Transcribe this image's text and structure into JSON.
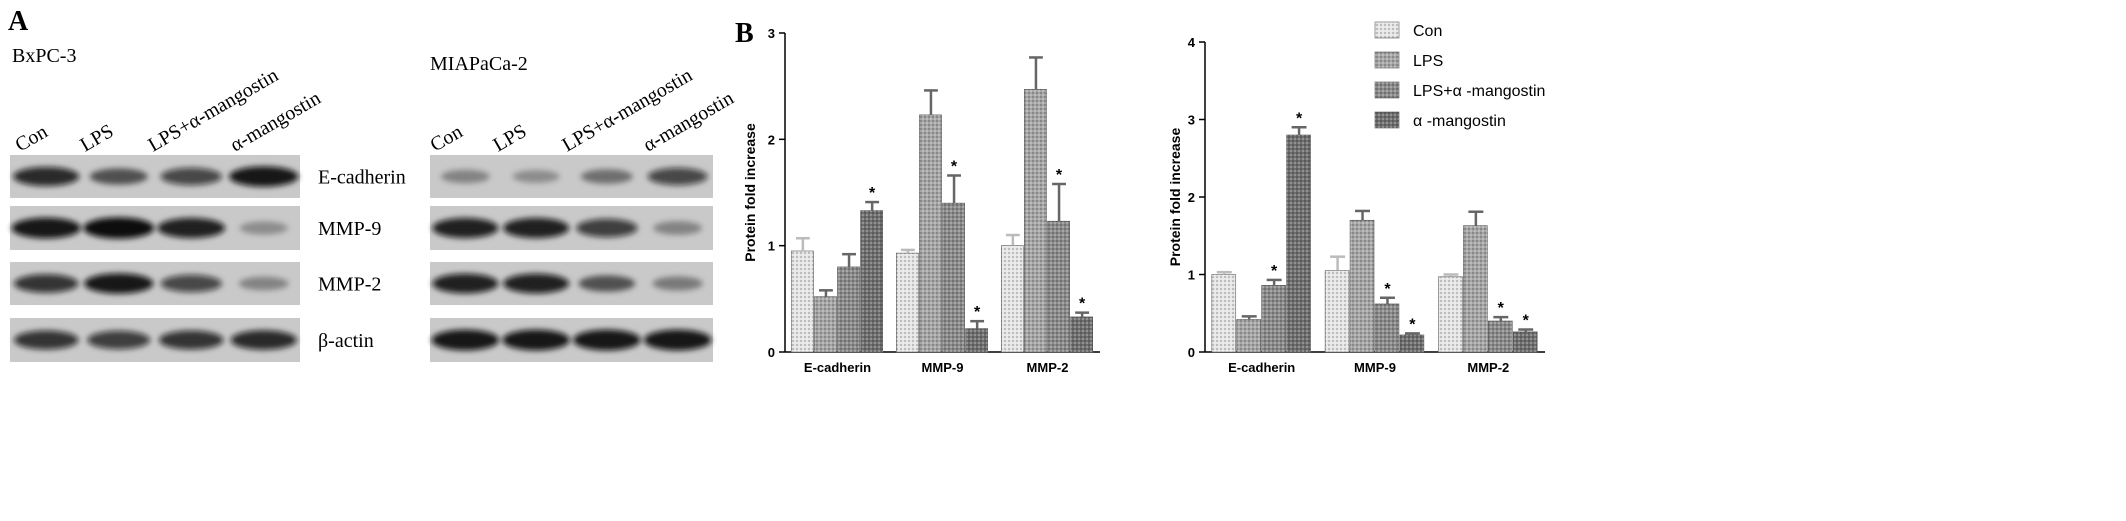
{
  "panel_a": {
    "label": "A",
    "proteins": [
      "E-cadherin",
      "MMP-9",
      "MMP-2",
      "β-actin"
    ],
    "blots": [
      {
        "cell_line": "BxPC-3",
        "lanes": [
          "Con",
          "LPS",
          "LPS+α-mangostin",
          "α-mangostin"
        ]
      },
      {
        "cell_line": "MIAPaCa-2",
        "lanes": [
          "Con",
          "LPS",
          "LPS+α-mangostin",
          "α-mangostin"
        ]
      }
    ]
  },
  "panel_b_label": "B",
  "chart_data": [
    {
      "type": "bar",
      "y_label": "Protein fold increase",
      "categories": [
        "E-cadherin",
        "MMP-9",
        "MMP-2"
      ],
      "ylim": [
        0,
        3
      ],
      "yticks": [
        0,
        1,
        2,
        3
      ],
      "annotation": "*",
      "series": [
        {
          "color": "#e6e6e6",
          "values": [
            0.95,
            0.93,
            1.0
          ],
          "errors": [
            0.12,
            0.03,
            0.1
          ],
          "significant": [
            false,
            false,
            false
          ]
        },
        {
          "color": "#a6a6a6",
          "values": [
            0.52,
            2.23,
            2.47
          ],
          "errors": [
            0.06,
            0.23,
            0.3
          ],
          "significant": [
            false,
            false,
            false
          ]
        },
        {
          "color": "#8a8a8a",
          "values": [
            0.8,
            1.4,
            1.23
          ],
          "errors": [
            0.12,
            0.26,
            0.35
          ],
          "significant": [
            false,
            true,
            true
          ]
        },
        {
          "color": "#6e6e6e",
          "values": [
            1.33,
            0.22,
            0.33
          ],
          "errors": [
            0.08,
            0.07,
            0.04
          ],
          "significant": [
            true,
            true,
            true
          ]
        }
      ]
    },
    {
      "type": "bar",
      "y_label": "Protein fold increase",
      "categories": [
        "E-cadherin",
        "MMP-9",
        "MMP-2"
      ],
      "ylim": [
        0,
        4
      ],
      "yticks": [
        0,
        1,
        2,
        3,
        4
      ],
      "annotation": "*",
      "legend": "top-right",
      "series": [
        {
          "name": "Con",
          "color": "#e6e6e6",
          "values": [
            1.0,
            1.05,
            0.97
          ],
          "errors": [
            0.03,
            0.18,
            0.03
          ],
          "significant": [
            false,
            false,
            false
          ]
        },
        {
          "name": "LPS",
          "color": "#a6a6a6",
          "values": [
            0.42,
            1.7,
            1.63
          ],
          "errors": [
            0.04,
            0.12,
            0.18
          ],
          "significant": [
            false,
            false,
            false
          ]
        },
        {
          "name": "LPS+α -mangostin",
          "color": "#8a8a8a",
          "values": [
            0.86,
            0.62,
            0.4
          ],
          "errors": [
            0.07,
            0.08,
            0.05
          ],
          "significant": [
            true,
            true,
            true
          ]
        },
        {
          "name": "α -mangostin",
          "color": "#6e6e6e",
          "values": [
            2.8,
            0.22,
            0.26
          ],
          "errors": [
            0.1,
            0.02,
            0.03
          ],
          "significant": [
            true,
            true,
            true
          ]
        }
      ]
    }
  ]
}
